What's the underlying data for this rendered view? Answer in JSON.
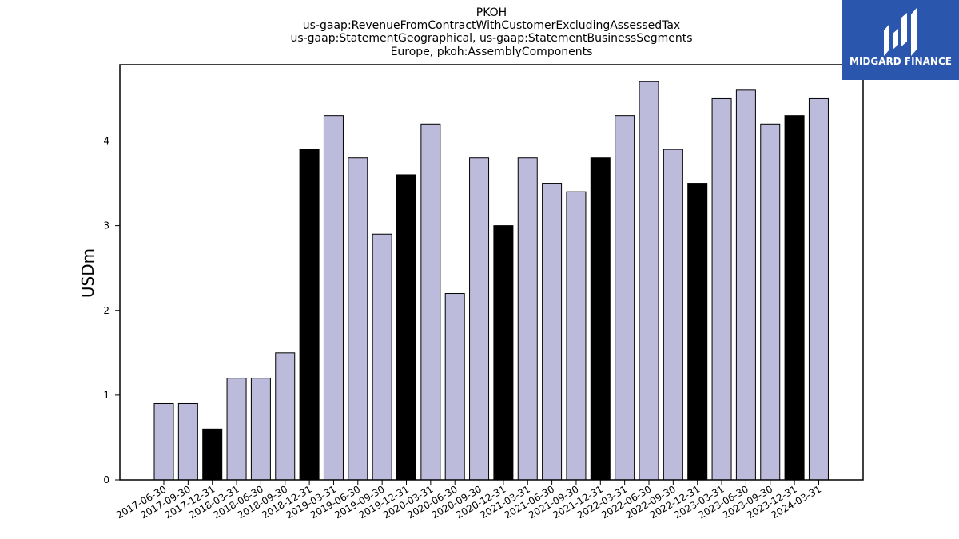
{
  "chart_data": {
    "type": "bar",
    "title_lines": [
      "PKOH",
      "us-gaap:RevenueFromContractWithCustomerExcludingAssessedTax",
      "us-gaap:StatementGeographical, us-gaap:StatementBusinessSegments",
      "Europe, pkoh:AssemblyComponents"
    ],
    "ylabel": "USDm",
    "xlabel": "",
    "ylim": [
      0,
      4.9
    ],
    "yticks": [
      0,
      1,
      2,
      3,
      4
    ],
    "grid": false,
    "categories": [
      "2017-06-30",
      "2017-09-30",
      "2017-12-31",
      "2018-03-31",
      "2018-06-30",
      "2018-09-30",
      "2018-12-31",
      "2019-03-31",
      "2019-06-30",
      "2019-09-30",
      "2019-12-31",
      "2020-03-31",
      "2020-06-30",
      "2020-09-30",
      "2020-12-31",
      "2021-03-31",
      "2021-06-30",
      "2021-09-30",
      "2021-12-31",
      "2022-03-31",
      "2022-06-30",
      "2022-09-30",
      "2022-12-31",
      "2023-03-31",
      "2023-06-30",
      "2023-09-30",
      "2023-12-31",
      "2024-03-31"
    ],
    "values": [
      0.9,
      0.9,
      0.6,
      1.2,
      1.2,
      1.5,
      3.9,
      4.3,
      3.8,
      2.9,
      3.6,
      4.2,
      2.2,
      3.8,
      3.0,
      3.8,
      3.5,
      3.4,
      3.8,
      4.3,
      4.7,
      3.9,
      3.5,
      4.5,
      4.6,
      4.2,
      4.3,
      4.5
    ],
    "highlighted": [
      false,
      false,
      true,
      false,
      false,
      false,
      true,
      false,
      false,
      false,
      true,
      false,
      false,
      false,
      true,
      false,
      false,
      false,
      true,
      false,
      false,
      false,
      true,
      false,
      false,
      false,
      true,
      false
    ],
    "colors": {
      "bar": "#bdbbdb",
      "highlight": "#000000",
      "edge": "#000000"
    }
  },
  "logo": {
    "text": "MIDGARD FINANCE",
    "background": "#2b56ae"
  }
}
